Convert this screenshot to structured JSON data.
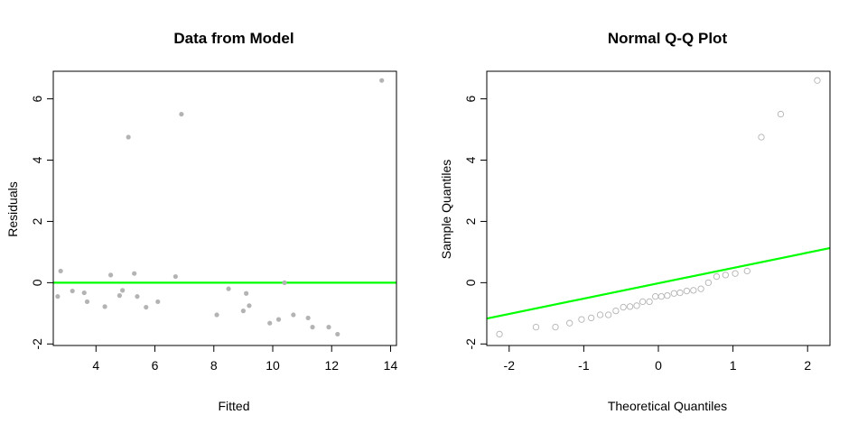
{
  "chart_data": [
    {
      "type": "scatter",
      "title": "Data from Model",
      "xlabel": "Fitted",
      "ylabel": "Residuals",
      "xlim": [
        2.55,
        14.2
      ],
      "ylim": [
        -2.05,
        6.9
      ],
      "xticks": [
        4,
        6,
        8,
        10,
        12,
        14
      ],
      "yticks": [
        -2,
        0,
        2,
        4,
        6
      ],
      "point_color": "#b3b3b3",
      "point_style": "filled",
      "reference_line": {
        "type": "horizontal",
        "y": 0,
        "color": "#00ff00"
      },
      "points": [
        {
          "x": 2.7,
          "y": -0.45
        },
        {
          "x": 2.8,
          "y": 0.38
        },
        {
          "x": 3.2,
          "y": -0.27
        },
        {
          "x": 3.6,
          "y": -0.33
        },
        {
          "x": 3.7,
          "y": -0.62
        },
        {
          "x": 4.3,
          "y": -0.78
        },
        {
          "x": 4.5,
          "y": 0.25
        },
        {
          "x": 4.8,
          "y": -0.42
        },
        {
          "x": 4.9,
          "y": -0.25
        },
        {
          "x": 5.1,
          "y": 4.75
        },
        {
          "x": 5.3,
          "y": 0.3
        },
        {
          "x": 5.4,
          "y": -0.45
        },
        {
          "x": 5.7,
          "y": -0.8
        },
        {
          "x": 6.1,
          "y": -0.62
        },
        {
          "x": 6.7,
          "y": 0.2
        },
        {
          "x": 6.9,
          "y": 5.5
        },
        {
          "x": 8.1,
          "y": -1.05
        },
        {
          "x": 8.5,
          "y": -0.2
        },
        {
          "x": 9.0,
          "y": -0.92
        },
        {
          "x": 9.1,
          "y": -0.35
        },
        {
          "x": 9.2,
          "y": -0.75
        },
        {
          "x": 9.9,
          "y": -1.32
        },
        {
          "x": 10.2,
          "y": -1.2
        },
        {
          "x": 10.4,
          "y": 0.0
        },
        {
          "x": 10.7,
          "y": -1.05
        },
        {
          "x": 11.2,
          "y": -1.15
        },
        {
          "x": 11.35,
          "y": -1.45
        },
        {
          "x": 11.9,
          "y": -1.45
        },
        {
          "x": 12.2,
          "y": -1.68
        },
        {
          "x": 13.7,
          "y": 6.6
        }
      ]
    },
    {
      "type": "scatter",
      "title": "Normal Q-Q Plot",
      "xlabel": "Theoretical Quantiles",
      "ylabel": "Sample Quantiles",
      "xlim": [
        -2.3,
        2.3
      ],
      "ylim": [
        -2.05,
        6.9
      ],
      "xticks": [
        -2,
        -1,
        0,
        1,
        2
      ],
      "yticks": [
        -2,
        0,
        2,
        4,
        6
      ],
      "point_color": "#b3b3b3",
      "point_style": "open",
      "reference_line": {
        "type": "line",
        "intercept": -0.02,
        "slope": 0.5,
        "color": "#00ff00"
      },
      "points": [
        {
          "x": -2.13,
          "y": -1.68
        },
        {
          "x": -1.64,
          "y": -1.45
        },
        {
          "x": -1.38,
          "y": -1.45
        },
        {
          "x": -1.19,
          "y": -1.32
        },
        {
          "x": -1.03,
          "y": -1.2
        },
        {
          "x": -0.9,
          "y": -1.15
        },
        {
          "x": -0.78,
          "y": -1.05
        },
        {
          "x": -0.67,
          "y": -1.05
        },
        {
          "x": -0.57,
          "y": -0.92
        },
        {
          "x": -0.47,
          "y": -0.8
        },
        {
          "x": -0.38,
          "y": -0.78
        },
        {
          "x": -0.29,
          "y": -0.75
        },
        {
          "x": -0.21,
          "y": -0.62
        },
        {
          "x": -0.12,
          "y": -0.62
        },
        {
          "x": -0.04,
          "y": -0.45
        },
        {
          "x": 0.04,
          "y": -0.45
        },
        {
          "x": 0.12,
          "y": -0.42
        },
        {
          "x": 0.21,
          "y": -0.35
        },
        {
          "x": 0.29,
          "y": -0.33
        },
        {
          "x": 0.38,
          "y": -0.27
        },
        {
          "x": 0.47,
          "y": -0.25
        },
        {
          "x": 0.57,
          "y": -0.2
        },
        {
          "x": 0.67,
          "y": 0.0
        },
        {
          "x": 0.78,
          "y": 0.2
        },
        {
          "x": 0.9,
          "y": 0.25
        },
        {
          "x": 1.03,
          "y": 0.3
        },
        {
          "x": 1.19,
          "y": 0.38
        },
        {
          "x": 1.38,
          "y": 4.75
        },
        {
          "x": 1.64,
          "y": 5.5
        },
        {
          "x": 2.13,
          "y": 6.6
        }
      ]
    }
  ]
}
